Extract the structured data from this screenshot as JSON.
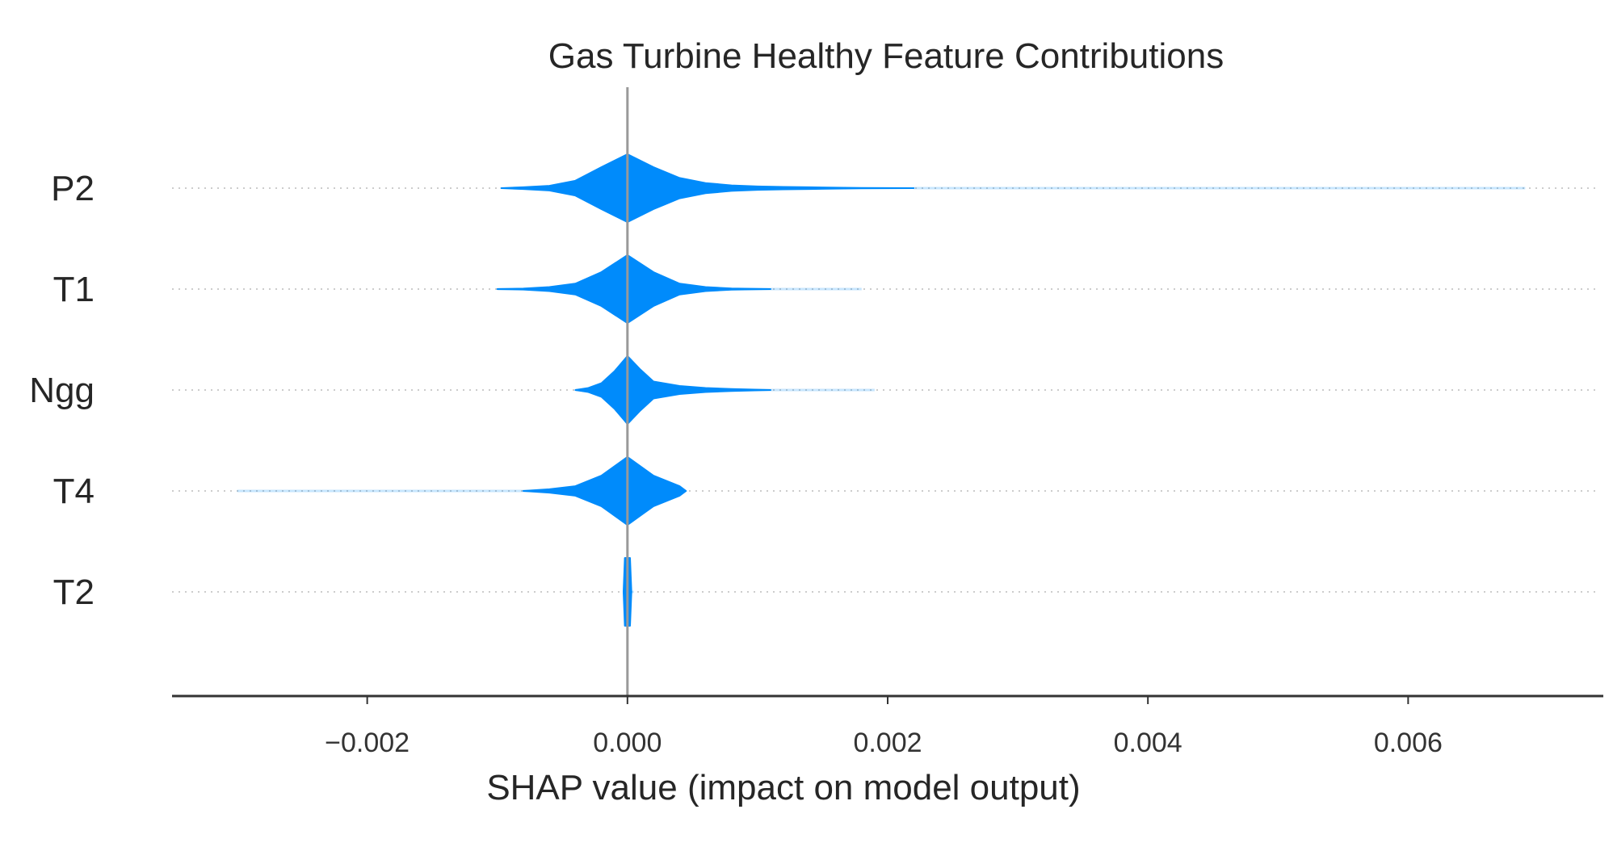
{
  "chart_data": {
    "type": "violin",
    "title": "Gas Turbine Healthy Feature Contributions",
    "xlabel": "SHAP value (impact on model output)",
    "ylabel": "",
    "xlim": [
      -0.0035,
      0.0075
    ],
    "xticks": [
      -0.002,
      0.0,
      0.002,
      0.004,
      0.006
    ],
    "xtick_labels": [
      "−0.002",
      "0.000",
      "0.002",
      "0.004",
      "0.006"
    ],
    "zero_line": 0.0,
    "grid": "dotted horizontal row lines",
    "color": "#008bfb",
    "features": [
      {
        "name": "P2",
        "profile": [
          [
            -0.00097,
            0.0
          ],
          [
            -0.0008,
            0.025
          ],
          [
            -0.0006,
            0.07
          ],
          [
            -0.0004,
            0.22
          ],
          [
            -0.0002,
            0.62
          ],
          [
            0.0,
            1.0
          ],
          [
            0.0002,
            0.62
          ],
          [
            0.0004,
            0.3
          ],
          [
            0.0006,
            0.15
          ],
          [
            0.0008,
            0.08
          ],
          [
            0.001,
            0.05
          ],
          [
            0.0012,
            0.035
          ],
          [
            0.0014,
            0.025
          ],
          [
            0.0016,
            0.015
          ],
          [
            0.0018,
            0.006
          ],
          [
            0.0022,
            0.0
          ]
        ],
        "faint_tail": [
          0.0022,
          0.0069
        ]
      },
      {
        "name": "T1",
        "profile": [
          [
            -0.001,
            0.0
          ],
          [
            -0.0008,
            0.015
          ],
          [
            -0.0006,
            0.06
          ],
          [
            -0.0004,
            0.16
          ],
          [
            -0.0002,
            0.5
          ],
          [
            0.0,
            1.0
          ],
          [
            0.0002,
            0.5
          ],
          [
            0.0004,
            0.16
          ],
          [
            0.0006,
            0.06
          ],
          [
            0.0008,
            0.02
          ],
          [
            0.0011,
            0.0
          ]
        ],
        "faint_tail": [
          -0.001,
          0.0018
        ]
      },
      {
        "name": "Ngg",
        "profile": [
          [
            -0.0004,
            0.0
          ],
          [
            -0.0003,
            0.06
          ],
          [
            -0.0002,
            0.2
          ],
          [
            -0.0001,
            0.55
          ],
          [
            0.0,
            1.0
          ],
          [
            0.0001,
            0.6
          ],
          [
            0.0002,
            0.25
          ],
          [
            0.0004,
            0.12
          ],
          [
            0.0006,
            0.06
          ],
          [
            0.0008,
            0.03
          ],
          [
            0.0011,
            0.0
          ]
        ],
        "faint_tail": [
          -0.0004,
          0.0019
        ]
      },
      {
        "name": "T4",
        "profile": [
          [
            -0.0008,
            0.0
          ],
          [
            -0.0006,
            0.05
          ],
          [
            -0.0004,
            0.14
          ],
          [
            -0.0002,
            0.45
          ],
          [
            0.0,
            1.0
          ],
          [
            0.0002,
            0.45
          ],
          [
            0.0004,
            0.14
          ],
          [
            0.00045,
            0.0
          ]
        ],
        "faint_tail": [
          -0.003,
          0.00045
        ]
      },
      {
        "name": "T2",
        "profile": [
          [
            -3e-05,
            0.0
          ],
          [
            -2e-05,
            1.0
          ],
          [
            0.0,
            1.0
          ],
          [
            2e-05,
            1.0
          ],
          [
            3e-05,
            0.0
          ]
        ],
        "faint_tail": [
          -3e-05,
          5e-05
        ]
      }
    ]
  }
}
